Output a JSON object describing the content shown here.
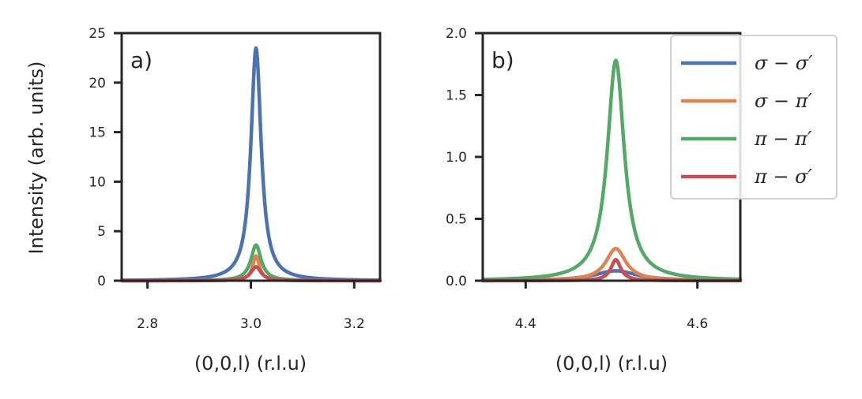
{
  "chart_data": [
    {
      "type": "line",
      "panel_label": "a)",
      "xlabel": "(0,0,l) (r.l.u)",
      "ylabel": "Intensity (arb. units)",
      "xlim": [
        2.75,
        3.25
      ],
      "ylim": [
        0,
        25
      ],
      "xticks": [
        2.8,
        3.0,
        3.2
      ],
      "xtick_labels": [
        "2.8",
        "3.0",
        "3.2"
      ],
      "yticks": [
        0,
        5,
        10,
        15,
        20,
        25
      ],
      "ytick_labels": [
        "0",
        "5",
        "10",
        "15",
        "20",
        "25"
      ],
      "peak_center": 3.01,
      "series": [
        {
          "name": "σ − σ′",
          "color": "#4c72b0",
          "peak": 23.5,
          "width": 0.012,
          "baseline": 0.0
        },
        {
          "name": "σ − π′",
          "color": "#dd8452",
          "peak": 2.5,
          "width": 0.008,
          "baseline": 0.0
        },
        {
          "name": "π − π′",
          "color": "#55a868",
          "peak": 3.6,
          "width": 0.012,
          "baseline": 0.0
        },
        {
          "name": "π − σ′",
          "color": "#c44e52",
          "peak": 1.4,
          "width": 0.012,
          "baseline": 0.0
        }
      ]
    },
    {
      "type": "line",
      "panel_label": "b)",
      "xlabel": "(0,0,l) (r.l.u)",
      "ylabel": "",
      "xlim": [
        4.35,
        4.65
      ],
      "ylim": [
        0,
        2.0
      ],
      "xticks": [
        4.4,
        4.6
      ],
      "xtick_labels": [
        "4.4",
        "4.6"
      ],
      "yticks": [
        0,
        0.5,
        1.0,
        1.5,
        2.0
      ],
      "ytick_labels": [
        "0.0",
        "0.5",
        "1.0",
        "1.5",
        "2.0"
      ],
      "peak_center": 4.505,
      "series": [
        {
          "name": "σ − σ′",
          "color": "#4c72b0",
          "peak": 0.08,
          "width": 0.03,
          "baseline": 0.0
        },
        {
          "name": "σ − π′",
          "color": "#dd8452",
          "peak": 0.26,
          "width": 0.014,
          "baseline": 0.0
        },
        {
          "name": "π − π′",
          "color": "#55a868",
          "peak": 1.78,
          "width": 0.012,
          "baseline": 0.0
        },
        {
          "name": "π − σ′",
          "color": "#c44e52",
          "peak": 0.17,
          "width": 0.007,
          "baseline": 0.0
        }
      ]
    }
  ],
  "legend": {
    "placement": "top-right",
    "entries": [
      {
        "label": "σ − σ′",
        "color": "#4c72b0"
      },
      {
        "label": "σ − π′",
        "color": "#dd8452"
      },
      {
        "label": "π − π′",
        "color": "#55a868"
      },
      {
        "label": "π − σ′",
        "color": "#c44e52"
      }
    ]
  }
}
